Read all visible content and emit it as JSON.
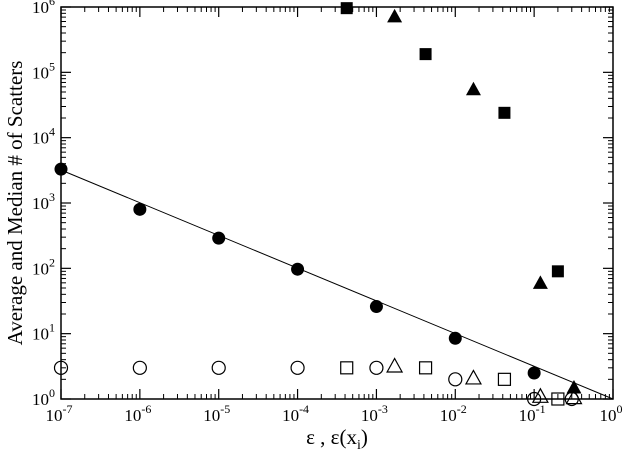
{
  "chart_data": {
    "type": "scatter",
    "xscale": "log",
    "yscale": "log",
    "xlim": [
      1e-07,
      1
    ],
    "ylim": [
      1,
      1000000
    ],
    "grid": false,
    "xlabel": "ε ,  ε(x",
    "xlabel_sub": "i",
    "xlabel_close": ")",
    "ylabel": "Average and Median # of Scatters",
    "x_ticks": [
      {
        "base": "10",
        "exp": "-7",
        "value": 1e-07
      },
      {
        "base": "10",
        "exp": "-6",
        "value": 1e-06
      },
      {
        "base": "10",
        "exp": "-5",
        "value": 1e-05
      },
      {
        "base": "10",
        "exp": "-4",
        "value": 0.0001
      },
      {
        "base": "10",
        "exp": "-3",
        "value": 0.001
      },
      {
        "base": "10",
        "exp": "-2",
        "value": 0.01
      },
      {
        "base": "10",
        "exp": "-1",
        "value": 0.1
      },
      {
        "base": "10",
        "exp": "0",
        "value": 1
      }
    ],
    "y_ticks": [
      {
        "base": "10",
        "exp": "0",
        "value": 1
      },
      {
        "base": "10",
        "exp": "1",
        "value": 10
      },
      {
        "base": "10",
        "exp": "2",
        "value": 100
      },
      {
        "base": "10",
        "exp": "3",
        "value": 1000
      },
      {
        "base": "10",
        "exp": "4",
        "value": 10000
      },
      {
        "base": "10",
        "exp": "5",
        "value": 100000
      },
      {
        "base": "10",
        "exp": "6",
        "value": 1000000
      }
    ],
    "series": [
      {
        "marker": "circle",
        "filled": true,
        "points": [
          {
            "x": 1e-07,
            "y": 3300
          },
          {
            "x": 1e-06,
            "y": 800
          },
          {
            "x": 1e-05,
            "y": 290
          },
          {
            "x": 0.0001,
            "y": 97
          },
          {
            "x": 0.001,
            "y": 26
          },
          {
            "x": 0.01,
            "y": 8.5
          },
          {
            "x": 0.1,
            "y": 2.5
          }
        ]
      },
      {
        "marker": "circle",
        "filled": false,
        "points": [
          {
            "x": 1e-07,
            "y": 3
          },
          {
            "x": 1e-06,
            "y": 3
          },
          {
            "x": 1e-05,
            "y": 3
          },
          {
            "x": 0.0001,
            "y": 3
          },
          {
            "x": 0.001,
            "y": 3
          },
          {
            "x": 0.01,
            "y": 2
          },
          {
            "x": 0.1,
            "y": 1
          },
          {
            "x": 0.3,
            "y": 1
          }
        ]
      },
      {
        "marker": "square",
        "filled": true,
        "points": [
          {
            "x": 0.00042,
            "y": 960000
          },
          {
            "x": 0.0042,
            "y": 190000
          },
          {
            "x": 0.042,
            "y": 24000
          },
          {
            "x": 0.2,
            "y": 90
          }
        ]
      },
      {
        "marker": "square",
        "filled": false,
        "points": [
          {
            "x": 0.00042,
            "y": 3
          },
          {
            "x": 0.0042,
            "y": 3
          },
          {
            "x": 0.042,
            "y": 2
          },
          {
            "x": 0.2,
            "y": 1
          }
        ]
      },
      {
        "marker": "triangle",
        "filled": true,
        "points": [
          {
            "x": 0.0017,
            "y": 720000
          },
          {
            "x": 0.017,
            "y": 55000
          },
          {
            "x": 0.12,
            "y": 60
          },
          {
            "x": 0.32,
            "y": 1.5
          }
        ]
      },
      {
        "marker": "triangle",
        "filled": false,
        "points": [
          {
            "x": 0.0017,
            "y": 3.2
          },
          {
            "x": 0.017,
            "y": 2.1
          },
          {
            "x": 0.12,
            "y": 1.1
          },
          {
            "x": 0.32,
            "y": 1.05
          }
        ]
      }
    ],
    "fit_line": {
      "points": [
        {
          "x": 1e-07,
          "y": 3200
        },
        {
          "x": 1,
          "y": 1
        }
      ]
    }
  }
}
